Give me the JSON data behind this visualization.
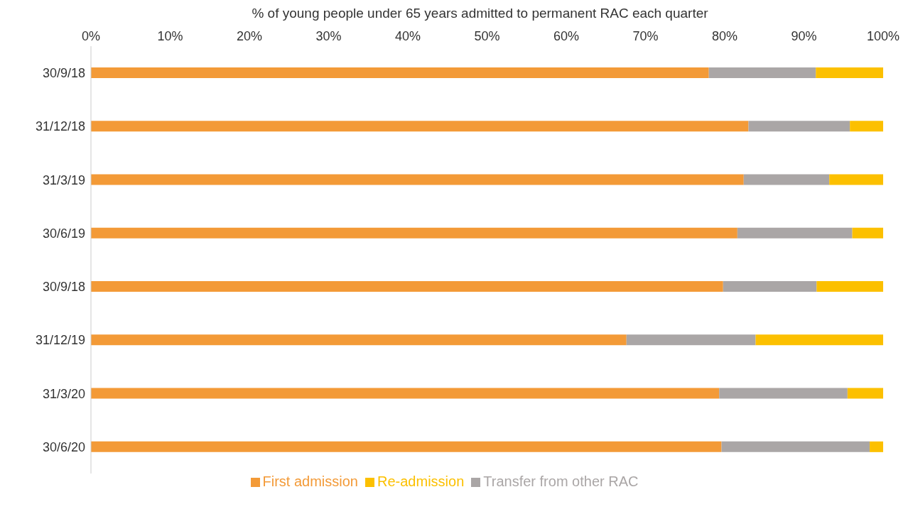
{
  "chart_data": {
    "type": "bar",
    "orientation": "horizontal",
    "stacked": true,
    "xlabel": "% of young people under 65 years admitted to permanent RAC each quarter",
    "categories": [
      "30/9/18",
      "31/12/18",
      "31/3/19",
      "30/6/19",
      "30/9/18",
      "31/12/19",
      "31/3/20",
      "30/6/20"
    ],
    "series": [
      {
        "name": "First admission",
        "color": "#f39a37",
        "values": [
          78,
          83,
          82.4,
          81.6,
          79.8,
          67.6,
          79.3,
          79.6
        ]
      },
      {
        "name": "Transfer from other RAC",
        "color": "#aaa6a6",
        "values": [
          13.5,
          12.8,
          10.8,
          14.5,
          11.8,
          16.3,
          16.2,
          18.7
        ]
      },
      {
        "name": "Re-admission",
        "color": "#fcc000",
        "values": [
          8.5,
          4.2,
          6.8,
          3.9,
          8.4,
          16.1,
          4.5,
          1.7
        ]
      }
    ],
    "xlim": [
      0,
      100
    ],
    "xticks": [
      {
        "value": 0,
        "label": "0%"
      },
      {
        "value": 10,
        "label": "10%"
      },
      {
        "value": 20,
        "label": "20%"
      },
      {
        "value": 30,
        "label": "30%"
      },
      {
        "value": 40,
        "label": "40%"
      },
      {
        "value": 50,
        "label": "50%"
      },
      {
        "value": 60,
        "label": "60%"
      },
      {
        "value": 70,
        "label": "70%"
      },
      {
        "value": 80,
        "label": "80%"
      },
      {
        "value": 90,
        "label": "90%"
      },
      {
        "value": 100,
        "label": "100%"
      }
    ],
    "grid": false,
    "legend": "bottom"
  }
}
